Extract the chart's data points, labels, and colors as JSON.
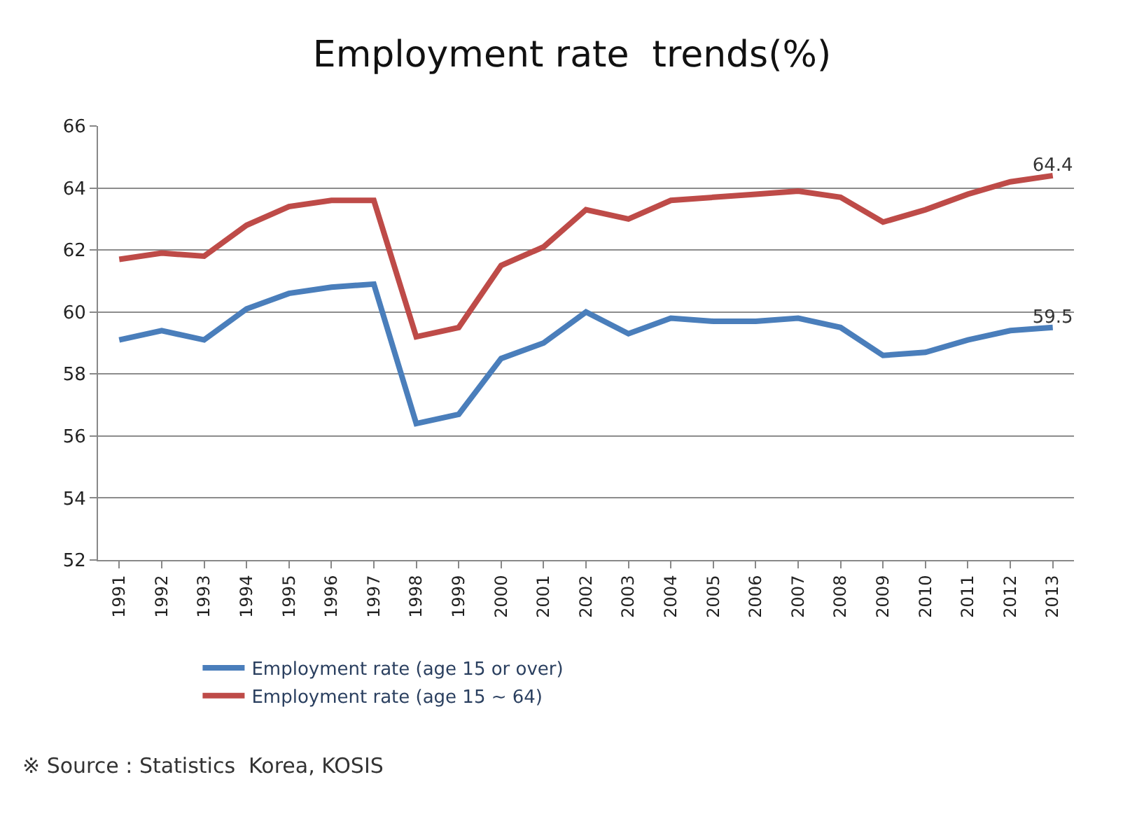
{
  "chart_data": {
    "type": "line",
    "title": "Employment rate  trends(%)",
    "categories": [
      "1991",
      "1992",
      "1993",
      "1994",
      "1995",
      "1996",
      "1997",
      "1998",
      "1999",
      "2000",
      "2001",
      "2002",
      "2003",
      "2004",
      "2005",
      "2006",
      "2007",
      "2008",
      "2009",
      "2010",
      "2011",
      "2012",
      "2013"
    ],
    "series": [
      {
        "name": "Employment rate (age 15 or over)",
        "color": "#4a7ebb",
        "values": [
          59.1,
          59.4,
          59.1,
          60.1,
          60.6,
          60.8,
          60.9,
          56.4,
          56.7,
          58.5,
          59.0,
          60.0,
          59.3,
          59.8,
          59.7,
          59.7,
          59.8,
          59.5,
          58.6,
          58.7,
          59.1,
          59.4,
          59.5
        ],
        "value_labels": [
          null,
          null,
          null,
          null,
          null,
          null,
          null,
          null,
          null,
          null,
          null,
          null,
          null,
          null,
          null,
          null,
          null,
          null,
          null,
          null,
          null,
          null,
          "59.5"
        ]
      },
      {
        "name": "Employment rate (age 15 ~ 64)",
        "color": "#be4b48",
        "values": [
          61.7,
          61.9,
          61.8,
          62.8,
          63.4,
          63.6,
          63.6,
          59.2,
          59.5,
          61.5,
          62.1,
          63.3,
          63.0,
          63.6,
          63.7,
          63.8,
          63.9,
          63.7,
          62.9,
          63.3,
          63.8,
          64.2,
          64.4
        ],
        "value_labels": [
          null,
          null,
          null,
          null,
          null,
          null,
          null,
          null,
          null,
          null,
          null,
          null,
          null,
          null,
          null,
          null,
          null,
          null,
          null,
          null,
          null,
          null,
          "64.4"
        ]
      }
    ],
    "ylim": [
      52,
      66
    ],
    "yticks": [
      52,
      54,
      56,
      58,
      60,
      62,
      64,
      66
    ],
    "grid": "y",
    "legend": "bottom",
    "marker": "none",
    "line_style": "solid",
    "annotations": [
      "※ Source : Statistics  Korea, KOSIS"
    ]
  }
}
